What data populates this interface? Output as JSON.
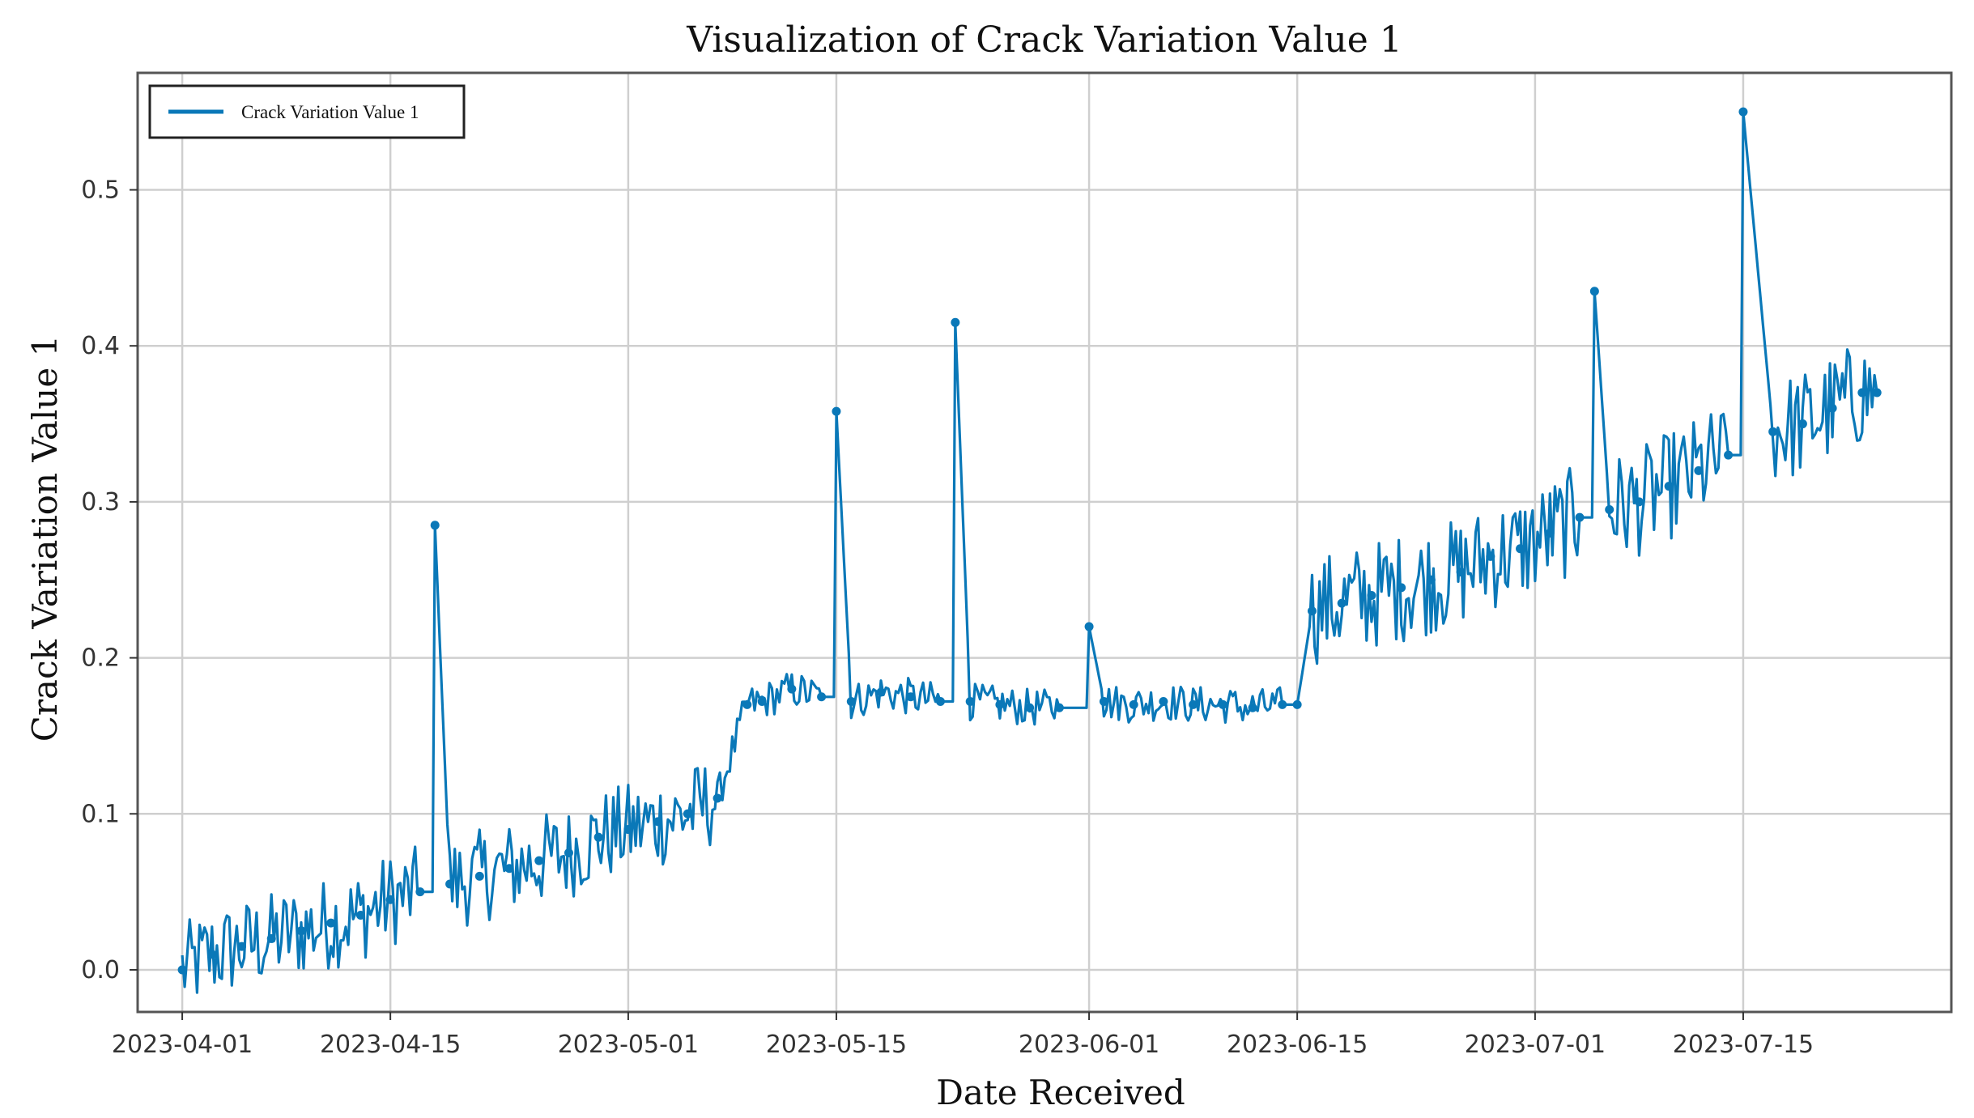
{
  "chart_data": {
    "type": "line",
    "title": "Visualization of Crack Variation Value 1",
    "xlabel": "Date Received",
    "ylabel": "Crack Variation Value 1",
    "xlim": [
      "2023-03-29",
      "2023-07-29"
    ],
    "ylim": [
      -0.027,
      0.575
    ],
    "x_ticks": [
      "2023-04-01",
      "2023-04-15",
      "2023-05-01",
      "2023-05-15",
      "2023-06-01",
      "2023-06-15",
      "2023-07-01",
      "2023-07-15"
    ],
    "y_ticks": [
      "0.0",
      "0.1",
      "0.2",
      "0.3",
      "0.4",
      "0.5"
    ],
    "grid": true,
    "legend_position": "top-left",
    "line_color": "#0a78b8",
    "series": [
      {
        "name": "Crack Variation Value 1",
        "x": [
          "2023-04-01",
          "2023-04-03",
          "2023-04-05",
          "2023-04-07",
          "2023-04-09",
          "2023-04-11",
          "2023-04-13",
          "2023-04-15",
          "2023-04-17",
          "2023-04-18",
          "2023-04-19",
          "2023-04-21",
          "2023-04-23",
          "2023-04-25",
          "2023-04-27",
          "2023-04-29",
          "2023-05-01",
          "2023-05-03",
          "2023-05-05",
          "2023-05-07",
          "2023-05-09",
          "2023-05-10",
          "2023-05-12",
          "2023-05-14",
          "2023-05-15",
          "2023-05-16",
          "2023-05-18",
          "2023-05-20",
          "2023-05-22",
          "2023-05-23",
          "2023-05-24",
          "2023-05-26",
          "2023-05-28",
          "2023-05-30",
          "2023-06-01",
          "2023-06-02",
          "2023-06-04",
          "2023-06-06",
          "2023-06-08",
          "2023-06-10",
          "2023-06-12",
          "2023-06-14",
          "2023-06-15",
          "2023-06-16",
          "2023-06-18",
          "2023-06-20",
          "2023-06-22",
          "2023-06-24",
          "2023-06-26",
          "2023-06-28",
          "2023-06-30",
          "2023-07-02",
          "2023-07-04",
          "2023-07-05",
          "2023-07-06",
          "2023-07-08",
          "2023-07-10",
          "2023-07-12",
          "2023-07-14",
          "2023-07-15",
          "2023-07-17",
          "2023-07-19",
          "2023-07-21",
          "2023-07-23",
          "2023-07-24"
        ],
        "y": [
          0.0,
          0.01,
          0.015,
          0.02,
          0.025,
          0.03,
          0.035,
          0.045,
          0.05,
          0.285,
          0.055,
          0.06,
          0.065,
          0.07,
          0.075,
          0.085,
          0.09,
          0.095,
          0.1,
          0.11,
          0.17,
          0.172,
          0.18,
          0.175,
          0.358,
          0.172,
          0.178,
          0.175,
          0.172,
          0.415,
          0.172,
          0.17,
          0.168,
          0.168,
          0.22,
          0.172,
          0.17,
          0.172,
          0.17,
          0.17,
          0.168,
          0.17,
          0.17,
          0.23,
          0.235,
          0.24,
          0.245,
          0.25,
          0.255,
          0.265,
          0.27,
          0.28,
          0.29,
          0.435,
          0.295,
          0.3,
          0.31,
          0.32,
          0.33,
          0.55,
          0.345,
          0.35,
          0.36,
          0.37,
          0.37
        ],
        "noise_band": [
          0.03,
          0.03,
          0.03,
          0.03,
          0.03,
          0.03,
          0.03,
          0.03,
          0.03,
          0.0,
          0.03,
          0.03,
          0.03,
          0.03,
          0.03,
          0.03,
          0.03,
          0.03,
          0.03,
          0.03,
          0.012,
          0.012,
          0.012,
          0.012,
          0.0,
          0.012,
          0.012,
          0.012,
          0.012,
          0.0,
          0.012,
          0.012,
          0.012,
          0.012,
          0.0,
          0.012,
          0.012,
          0.012,
          0.012,
          0.012,
          0.012,
          0.012,
          0.0,
          0.035,
          0.035,
          0.035,
          0.035,
          0.035,
          0.035,
          0.035,
          0.035,
          0.035,
          0.035,
          0.0,
          0.035,
          0.035,
          0.035,
          0.035,
          0.035,
          0.0,
          0.035,
          0.035,
          0.035,
          0.035,
          0.035
        ]
      }
    ]
  }
}
